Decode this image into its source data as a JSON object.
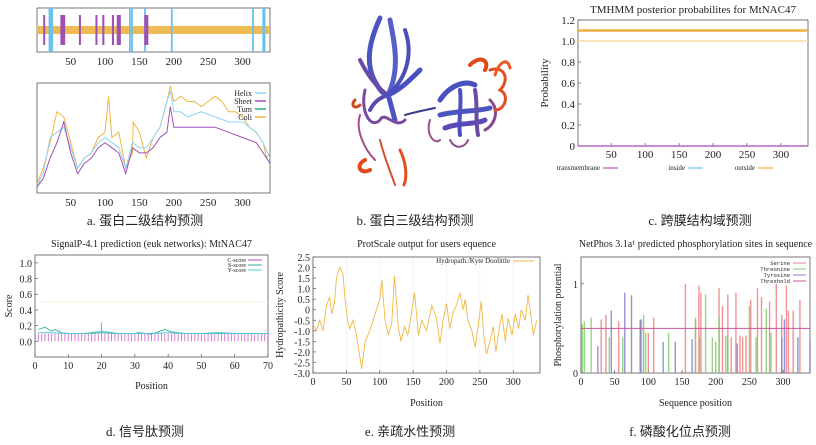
{
  "captions": {
    "a": "a. 蛋白二级结构预测",
    "b": "b. 蛋白三级结构预测",
    "c": "c. 跨膜结构域预测",
    "d": "d. 信号肽预测",
    "e": "e. 亲疏水性预测",
    "f": "f. 磷酸化位点预测"
  },
  "chart_data": [
    {
      "id": "a-top",
      "type": "diagram",
      "title": "",
      "xlim": [
        1,
        340
      ],
      "xticks": [
        "50",
        "100",
        "150",
        "200",
        "250",
        "300"
      ],
      "sheet_segments": [
        [
          10,
          11
        ],
        [
          35,
          42
        ],
        [
          62,
          64
        ],
        [
          86,
          88
        ],
        [
          96,
          99
        ],
        [
          110,
          113
        ],
        [
          117,
          123
        ],
        [
          157,
          163
        ]
      ],
      "helix_lines": [
        19,
        20,
        21,
        22,
        23,
        136,
        139,
        158,
        197,
        315,
        330,
        331,
        332
      ],
      "colors": {
        "coil": "#f0c060",
        "sheet": "#a050b0",
        "helix": "#6cc0ee"
      }
    },
    {
      "id": "a-bottom",
      "type": "line",
      "xlim": [
        1,
        340
      ],
      "xticks": [
        "50",
        "100",
        "150",
        "200",
        "250",
        "300"
      ],
      "legend": [
        "Helix",
        "Sheet",
        "Tum",
        "Coli"
      ],
      "legend_position": "top-right",
      "colors": {
        "Helix": "#8fd3f4",
        "Sheet": "#a050b8",
        "Tum": "#2aa58a",
        "Coli": "#f0b840"
      },
      "series": [
        {
          "name": "Coli",
          "x": [
            1,
            10,
            20,
            30,
            40,
            50,
            60,
            70,
            80,
            90,
            100,
            105,
            110,
            120,
            130,
            140,
            141,
            150,
            160,
            170,
            180,
            190,
            195,
            200,
            210,
            220,
            230,
            240,
            250,
            260,
            270,
            280,
            290,
            300,
            310,
            320,
            330,
            335,
            340
          ],
          "y": [
            0.05,
            0.2,
            0.45,
            0.75,
            0.7,
            0.45,
            0.2,
            0.3,
            0.35,
            0.5,
            0.55,
            0.9,
            0.5,
            0.55,
            0.2,
            0.35,
            0.65,
            0.55,
            0.3,
            0.5,
            0.6,
            0.85,
            1.0,
            0.85,
            0.9,
            0.85,
            0.85,
            0.8,
            0.85,
            0.9,
            0.85,
            0.75,
            0.75,
            0.7,
            0.6,
            0.55,
            0.45,
            0.3,
            0.35
          ]
        },
        {
          "name": "Helix",
          "x": [
            1,
            10,
            20,
            30,
            40,
            50,
            60,
            70,
            80,
            90,
            100,
            110,
            120,
            130,
            140,
            150,
            160,
            170,
            180,
            190,
            195,
            200,
            210,
            220,
            240,
            260,
            280,
            300,
            320,
            330,
            340
          ],
          "y": [
            0.03,
            0.15,
            0.5,
            0.55,
            0.6,
            0.4,
            0.2,
            0.3,
            0.35,
            0.45,
            0.5,
            0.45,
            0.4,
            0.2,
            0.45,
            0.4,
            0.4,
            0.5,
            0.6,
            0.85,
            0.95,
            0.75,
            0.75,
            0.7,
            0.75,
            0.7,
            0.65,
            0.65,
            0.55,
            0.45,
            0.3
          ]
        },
        {
          "name": "Sheet",
          "x": [
            1,
            10,
            20,
            30,
            40,
            50,
            60,
            70,
            80,
            90,
            100,
            110,
            120,
            130,
            140,
            150,
            160,
            170,
            180,
            190,
            195,
            200,
            210,
            220,
            240,
            260,
            280,
            300,
            320,
            330,
            340
          ],
          "y": [
            0.02,
            0.1,
            0.3,
            0.45,
            0.65,
            0.35,
            0.15,
            0.25,
            0.3,
            0.4,
            0.45,
            0.4,
            0.35,
            0.15,
            0.4,
            0.35,
            0.35,
            0.4,
            0.5,
            0.55,
            0.8,
            0.6,
            0.6,
            0.6,
            0.6,
            0.6,
            0.55,
            0.5,
            0.45,
            0.35,
            0.25
          ]
        }
      ]
    },
    {
      "id": "c",
      "type": "line",
      "title": "TMHMM posterior probabilites for MtNAC47",
      "ylabel": "Probability",
      "ylim": [
        0,
        1.2
      ],
      "yticks": [
        "0",
        "0.2",
        "0.4",
        "0.6",
        "0.8",
        "1.0",
        "1.2"
      ],
      "xlim": [
        1,
        340
      ],
      "xticks": [
        "50",
        "100",
        "150",
        "200",
        "250",
        "300"
      ],
      "legend": [
        "transmembrane",
        "inside",
        "outside"
      ],
      "legend_position": "bottom",
      "colors": {
        "transmembrane": "#c050c0",
        "inside": "#6cc0ee",
        "outside": "#f0b040",
        "band": "#f6dca0"
      },
      "series": [
        {
          "name": "outside",
          "value": 1.1
        },
        {
          "name": "inside",
          "value": 0.0
        },
        {
          "name": "transmembrane",
          "value": 0.0
        }
      ]
    },
    {
      "id": "d",
      "type": "line",
      "title": "SignalP-4.1 prediction (euk networks): MtNAC47",
      "xlabel": "Position",
      "ylabel": "Score",
      "xlim": [
        0,
        70
      ],
      "ylim": [
        -0.2,
        1.1
      ],
      "xticks": [
        "0",
        "10",
        "20",
        "30",
        "40",
        "50",
        "60",
        "70"
      ],
      "yticks": [
        "0.0",
        "0.2",
        "0.4",
        "0.6",
        "0.8",
        "1.0"
      ],
      "legend": [
        "C-score",
        "S-score",
        "Y-score"
      ],
      "legend_position": "top-right",
      "colors": {
        "C-score": "#c040c0",
        "S-score": "#30b090",
        "Y-score": "#50c8d8",
        "cutoff": "#e8e8b0"
      },
      "cutoff": 0.5,
      "c_score_bars": 0.1,
      "c_score_peak": {
        "x": 20,
        "y": 0.24
      },
      "series": [
        {
          "name": "S-score",
          "x": [
            1,
            3,
            5,
            6,
            8,
            10,
            15,
            20,
            25,
            30,
            31,
            33,
            35,
            39,
            41,
            45,
            50,
            55,
            60,
            65,
            70
          ],
          "y": [
            0.15,
            0.18,
            0.13,
            0.15,
            0.11,
            0.1,
            0.1,
            0.11,
            0.1,
            0.1,
            0.11,
            0.1,
            0.09,
            0.15,
            0.12,
            0.1,
            0.1,
            0.11,
            0.1,
            0.1,
            0.1
          ]
        },
        {
          "name": "Y-score",
          "x": [
            1,
            5,
            10,
            15,
            20,
            25,
            30,
            35,
            40,
            45,
            50,
            55,
            60,
            65,
            70
          ],
          "y": [
            0.11,
            0.11,
            0.1,
            0.1,
            0.13,
            0.1,
            0.1,
            0.1,
            0.11,
            0.1,
            0.1,
            0.1,
            0.1,
            0.1,
            0.1
          ]
        }
      ]
    },
    {
      "id": "e",
      "type": "line",
      "title": "ProtScale output for users equence",
      "xlabel": "Position",
      "ylabel": "Hydropathicity Score",
      "xlim": [
        0,
        340
      ],
      "ylim": [
        -3.0,
        2.5
      ],
      "xticks": [
        "0",
        "50",
        "100",
        "150",
        "200",
        "250",
        "300"
      ],
      "yticks": [
        "2.5",
        "2.0",
        "1.5",
        "1.0",
        "0.5",
        "0",
        "-0.5",
        "-1.0",
        "-1.5",
        "-2.0",
        "-2.5",
        "-3.0"
      ],
      "legend": [
        "Hydropath./Kyte Doolittle"
      ],
      "legend_position": "top-right",
      "colors": {
        "line": "#f0b840"
      },
      "series": [
        {
          "name": "Hydropath./Kyte Doolittle",
          "x": [
            0,
            5,
            10,
            15,
            20,
            25,
            28,
            32,
            35,
            40,
            45,
            48,
            52,
            55,
            60,
            65,
            70,
            73,
            78,
            85,
            92,
            100,
            103,
            108,
            113,
            118,
            122,
            128,
            132,
            137,
            142,
            147,
            152,
            158,
            163,
            170,
            178,
            185,
            190,
            195,
            200,
            205,
            210,
            215,
            220,
            225,
            228,
            232,
            238,
            243,
            248,
            252,
            256,
            260,
            265,
            270,
            274,
            278,
            283,
            288,
            292,
            298,
            303,
            308,
            312,
            318,
            322,
            326,
            330,
            335
          ],
          "y": [
            -0.7,
            -1.0,
            -0.5,
            -1.0,
            0.2,
            0.6,
            -0.2,
            0.3,
            1.5,
            2.0,
            1.7,
            0.5,
            -0.5,
            -0.9,
            -0.5,
            -1.2,
            -2.2,
            -2.8,
            -1.5,
            -1.0,
            -0.3,
            0.5,
            1.4,
            -0.5,
            -1.2,
            -0.6,
            1.6,
            -0.9,
            -1.5,
            -0.8,
            -1.2,
            -0.3,
            0.8,
            -1.2,
            -0.5,
            -1.0,
            0.2,
            -0.4,
            -1.6,
            -0.5,
            0.3,
            -0.9,
            -0.1,
            0.2,
            0.8,
            0.0,
            0.5,
            -0.5,
            -1.0,
            -1.8,
            -0.6,
            0.4,
            -1.3,
            -2.1,
            -1.5,
            -0.8,
            -2.0,
            -1.1,
            -0.2,
            -1.5,
            -0.4,
            -1.2,
            -0.2,
            -0.9,
            0.0,
            -0.5,
            0.7,
            -0.2,
            -1.2,
            -0.5
          ]
        }
      ]
    },
    {
      "id": "f",
      "type": "bar",
      "title": "NetPhos 3.1a¹ predicted phosphorylation sites in sequence",
      "xlabel": "Sequence position",
      "ylabel": "Phosphorylation potential",
      "xlim": [
        0,
        340
      ],
      "ylim": [
        0,
        1.3
      ],
      "xticks": [
        "0",
        "50",
        "100",
        "150",
        "200",
        "250",
        "300"
      ],
      "yticks": [
        "0",
        "1"
      ],
      "legend": [
        "Serine",
        "Threonine",
        "Tyrosine",
        "Threshold"
      ],
      "legend_position": "top-right",
      "colors": {
        "Serine": "#f08080",
        "Threonine": "#80cc70",
        "Tyrosine": "#8080d0",
        "Threshold": "#d050a0"
      },
      "threshold": 0.5,
      "series": [
        {
          "name": "Serine",
          "x": [
            30,
            37,
            56,
            88,
            100,
            108,
            155,
            170,
            175,
            178,
            205,
            210,
            218,
            223,
            230,
            236,
            240,
            245,
            252,
            262,
            268,
            280,
            290,
            298,
            305,
            308,
            315,
            325
          ],
          "y": [
            0.6,
            0.65,
            0.58,
            0.58,
            0.45,
            0.62,
            1.0,
            0.6,
            0.98,
            0.9,
            0.95,
            0.75,
            0.88,
            0.4,
            0.9,
            0.42,
            0.4,
            0.42,
            0.82,
            0.95,
            0.85,
            0.8,
            1.0,
            0.65,
            0.98,
            0.7,
            0.7,
            0.82
          ]
        },
        {
          "name": "Threonine",
          "x": [
            2,
            5,
            15,
            42,
            62,
            90,
            93,
            96,
            130,
            170,
            176,
            185,
            195,
            200,
            205,
            215,
            218,
            250,
            260,
            275,
            282
          ],
          "y": [
            0.55,
            0.58,
            0.62,
            0.4,
            0.4,
            0.6,
            0.65,
            0.45,
            0.45,
            0.62,
            0.4,
            0.88,
            0.4,
            0.35,
            0.62,
            0.42,
            0.4,
            0.75,
            0.4,
            0.72,
            0.45
          ]
        },
        {
          "name": "Tyrosine",
          "x": [
            25,
            45,
            65,
            75,
            88,
            122,
            140,
            165,
            232,
            298,
            302,
            322,
            340
          ],
          "y": [
            0.3,
            0.7,
            0.9,
            0.87,
            0.6,
            0.35,
            0.35,
            0.38,
            0.33,
            0.4,
            0.6,
            0.4,
            0.35
          ]
        }
      ]
    }
  ]
}
